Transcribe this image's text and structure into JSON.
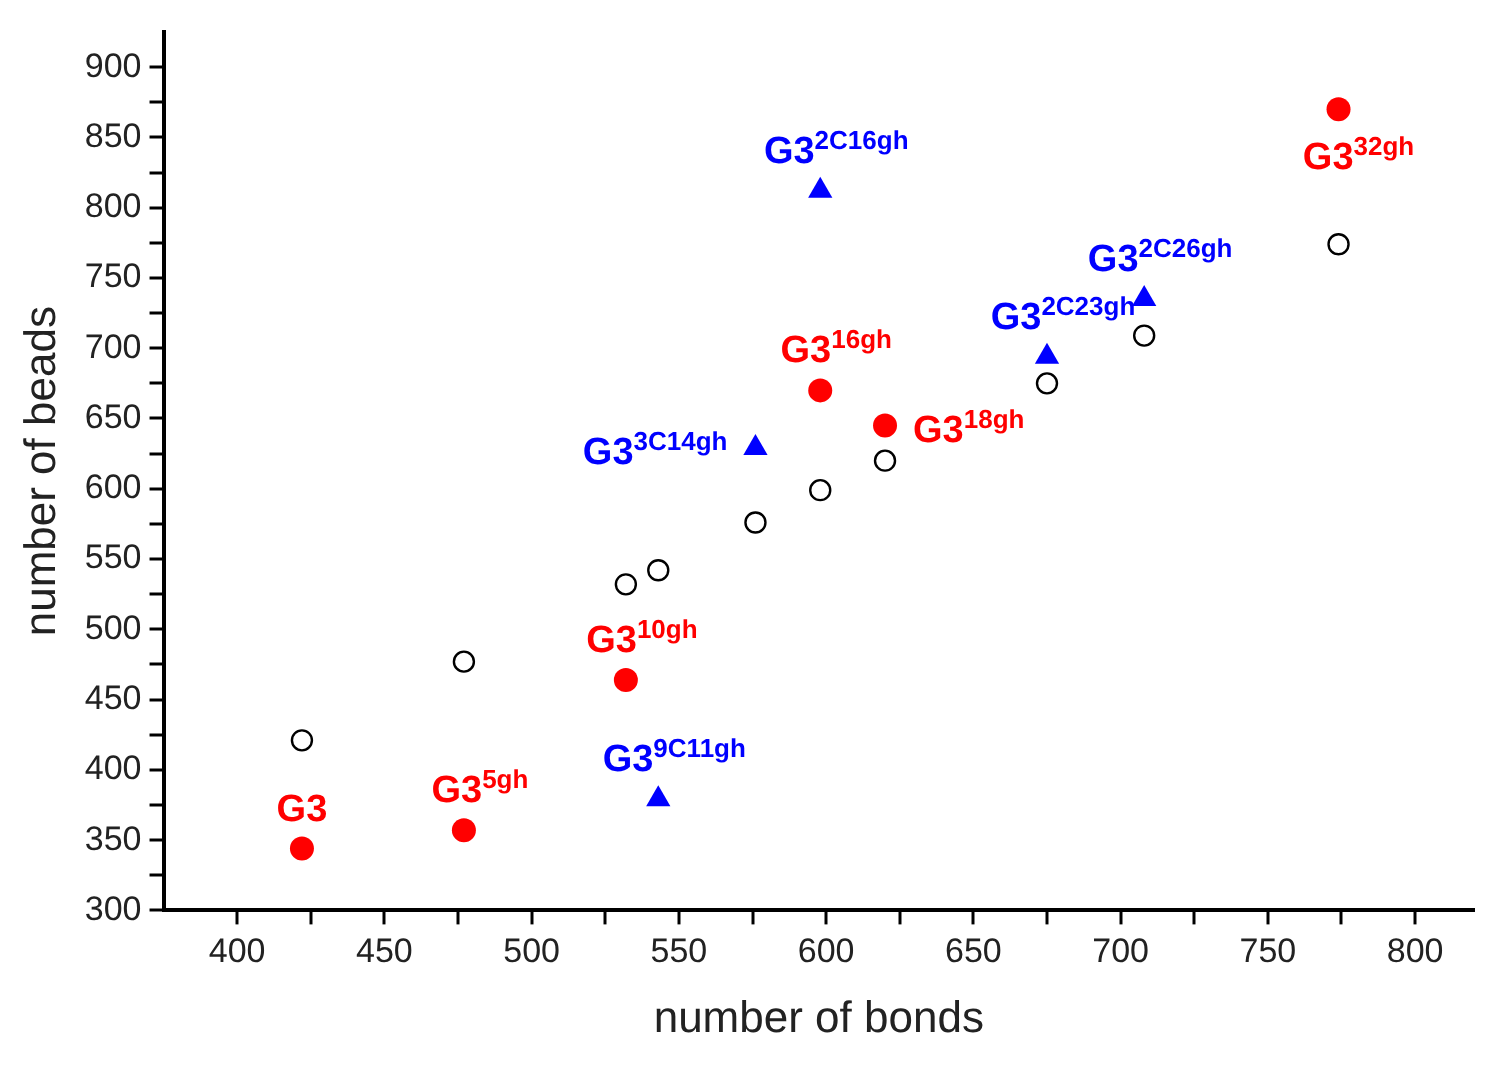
{
  "chart_data": {
    "type": "scatter",
    "xlabel": "number of bonds",
    "ylabel": "number of beads",
    "xlim": [
      375,
      820
    ],
    "ylim": [
      300,
      925
    ],
    "xticks": [
      400,
      {
        "value": 425,
        "label": null
      },
      450,
      {
        "value": 475,
        "label": null
      },
      500,
      {
        "value": 525,
        "label": null
      },
      550,
      {
        "value": 575,
        "label": null
      },
      600,
      {
        "value": 625,
        "label": null
      },
      650,
      {
        "value": 675,
        "label": null
      },
      700,
      {
        "value": 725,
        "label": null
      },
      750,
      {
        "value": 775,
        "label": null
      },
      800
    ],
    "yticks": [
      300,
      {
        "value": 325,
        "label": null
      },
      350,
      {
        "value": 375,
        "label": null
      },
      400,
      {
        "value": 425,
        "label": null
      },
      450,
      {
        "value": 475,
        "label": null
      },
      500,
      {
        "value": 525,
        "label": null
      },
      550,
      {
        "value": 575,
        "label": null
      },
      600,
      {
        "value": 625,
        "label": null
      },
      650,
      {
        "value": 675,
        "label": null
      },
      700,
      {
        "value": 725,
        "label": null
      },
      750,
      {
        "value": 775,
        "label": null
      },
      800,
      {
        "value": 825,
        "label": null
      },
      850,
      {
        "value": 875,
        "label": null
      },
      900
    ],
    "grid": false,
    "legend": false,
    "series": [
      {
        "color": "#ff0000",
        "marker": "circle",
        "x": [
          422,
          477,
          532,
          598,
          620,
          774
        ],
        "values": [
          344,
          357,
          464,
          670,
          645,
          870
        ]
      },
      {
        "color": "#0000ff",
        "marker": "triangle",
        "x": [
          598,
          576,
          675,
          708,
          543
        ],
        "values": [
          812,
          629,
          694,
          735,
          379
        ]
      },
      {
        "color": "#000000",
        "marker": "circle",
        "x": [
          422,
          477,
          532,
          543,
          576,
          598,
          620,
          675,
          708,
          774
        ],
        "values": [
          421,
          477,
          532,
          542,
          576,
          599,
          620,
          675,
          709,
          774
        ]
      }
    ],
    "annotations": [
      {
        "text": "G3",
        "x": 422,
        "y": 344
      },
      {
        "text": "G3$^{5gh}$",
        "x": 477,
        "y": 357
      },
      {
        "text": "G3$^{10gh}$",
        "x": 532,
        "y": 464
      },
      {
        "text": "G3$^{16gh}$",
        "x": 598,
        "y": 670
      },
      {
        "text": "G3$^{18gh}$",
        "x": 620,
        "y": 645
      },
      {
        "text": "G3$^{32gh}$",
        "x": 774,
        "y": 870
      },
      {
        "text": "G3$^{2C16gh}$",
        "x": 598,
        "y": 812
      },
      {
        "text": "G3$^{3C14gh}$",
        "x": 576,
        "y": 629
      },
      {
        "text": "G3$^{2C23gh}$",
        "x": 675,
        "y": 694
      },
      {
        "text": "G3$^{2C26gh}$",
        "x": 708,
        "y": 735
      },
      {
        "text": "G3$^{9C11gh}$",
        "x": 543,
        "y": 379
      }
    ]
  }
}
